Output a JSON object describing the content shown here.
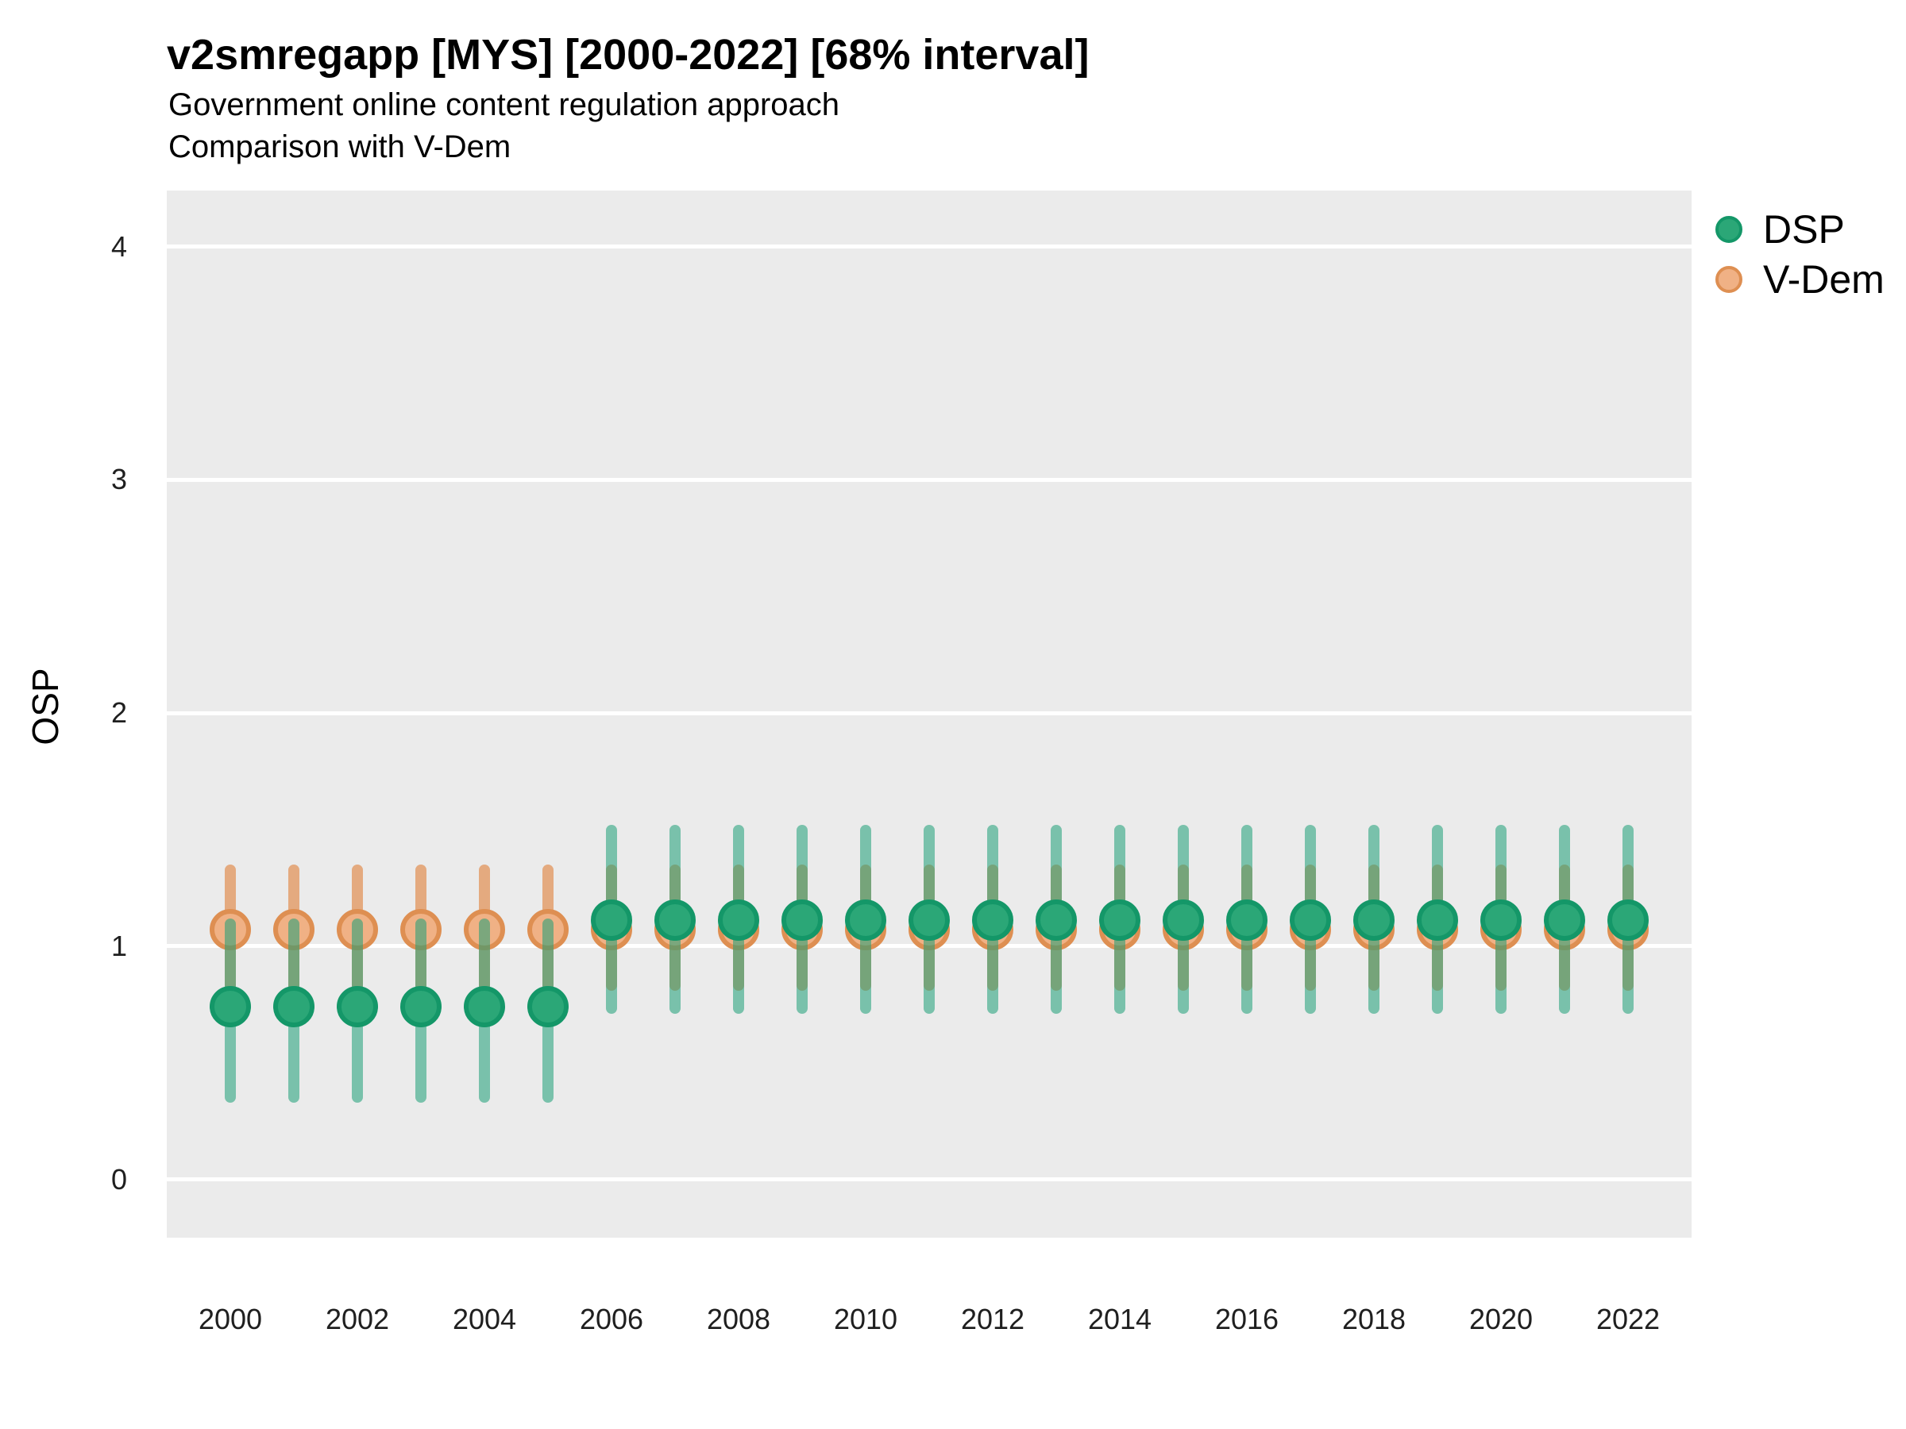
{
  "header": {
    "title": "v2smregapp [MYS] [2000-2022] [68% interval]",
    "subtitle_line1": "Government online content regulation approach",
    "subtitle_line2": "Comparison with V-Dem"
  },
  "chart_data": {
    "type": "scatter",
    "title": "v2smregapp [MYS] [2000-2022] [68% interval]",
    "subtitle": "Government online content regulation approach / Comparison with V-Dem",
    "xlabel": "",
    "ylabel": "OSP",
    "interval_level": "68%",
    "xlim": [
      1999,
      2023
    ],
    "ylim": [
      -0.25,
      4.24
    ],
    "yticks": [
      0,
      1,
      2,
      3,
      4
    ],
    "xticks": [
      2000,
      2002,
      2004,
      2006,
      2008,
      2010,
      2012,
      2014,
      2016,
      2018,
      2020,
      2022
    ],
    "grid": "horizontal major gridlines, white on gray panel",
    "legend_position": "right-top",
    "x": [
      2000,
      2001,
      2002,
      2003,
      2004,
      2005,
      2006,
      2007,
      2008,
      2009,
      2010,
      2011,
      2012,
      2013,
      2014,
      2015,
      2016,
      2017,
      2018,
      2019,
      2020,
      2021,
      2022
    ],
    "series": [
      {
        "name": "DSP",
        "point_fill": "#2BA777",
        "point_stroke": "#149768",
        "bar_color": "rgba(27,158,119,0.55)",
        "y": [
          0.74,
          0.74,
          0.74,
          0.74,
          0.74,
          0.74,
          1.11,
          1.11,
          1.11,
          1.11,
          1.11,
          1.11,
          1.11,
          1.11,
          1.11,
          1.11,
          1.11,
          1.11,
          1.11,
          1.11,
          1.11,
          1.11,
          1.11
        ],
        "lo": [
          0.33,
          0.33,
          0.33,
          0.33,
          0.33,
          0.33,
          0.71,
          0.71,
          0.71,
          0.71,
          0.71,
          0.71,
          0.71,
          0.71,
          0.71,
          0.71,
          0.71,
          0.71,
          0.71,
          0.71,
          0.71,
          0.71,
          0.71
        ],
        "hi": [
          1.12,
          1.12,
          1.12,
          1.12,
          1.12,
          1.12,
          1.52,
          1.52,
          1.52,
          1.52,
          1.52,
          1.52,
          1.52,
          1.52,
          1.52,
          1.52,
          1.52,
          1.52,
          1.52,
          1.52,
          1.52,
          1.52,
          1.52
        ]
      },
      {
        "name": "V-Dem",
        "point_fill": "#F0B185",
        "point_stroke": "#DE8F52",
        "bar_color": "rgba(224,126,55,0.6)",
        "y": [
          1.07,
          1.07,
          1.07,
          1.07,
          1.07,
          1.07,
          1.07,
          1.07,
          1.07,
          1.07,
          1.07,
          1.07,
          1.07,
          1.07,
          1.07,
          1.07,
          1.07,
          1.07,
          1.07,
          1.07,
          1.07,
          1.07,
          1.07
        ],
        "lo": [
          0.81,
          0.81,
          0.81,
          0.81,
          0.81,
          0.81,
          0.81,
          0.81,
          0.81,
          0.81,
          0.81,
          0.81,
          0.81,
          0.81,
          0.81,
          0.81,
          0.81,
          0.81,
          0.81,
          0.81,
          0.81,
          0.81,
          0.81
        ],
        "hi": [
          1.35,
          1.35,
          1.35,
          1.35,
          1.35,
          1.35,
          1.35,
          1.35,
          1.35,
          1.35,
          1.35,
          1.35,
          1.35,
          1.35,
          1.35,
          1.35,
          1.35,
          1.35,
          1.35,
          1.35,
          1.35,
          1.35,
          1.35
        ]
      }
    ]
  },
  "colors": {
    "panel_bg": "#EBEBEB",
    "gridline": "#FFFFFF",
    "tick_label": "#1f1f1f",
    "text": "#000000"
  }
}
